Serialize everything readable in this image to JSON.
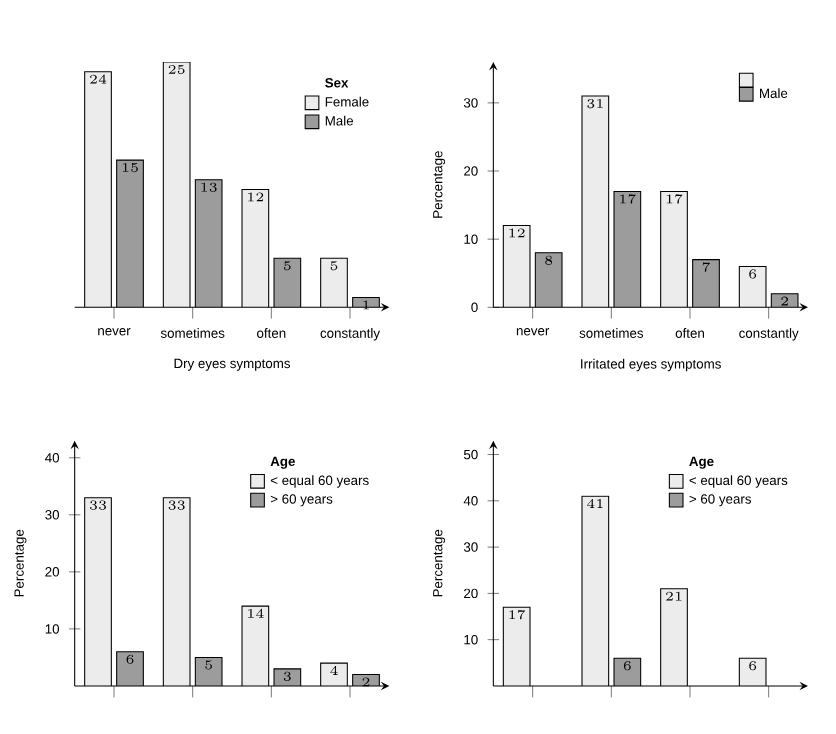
{
  "chart_data": [
    {
      "type": "bar",
      "xlabel": "Dry eyes symptoms",
      "legend_title": "Sex",
      "categories": [
        "never",
        "sometimes",
        "often",
        "constantly"
      ],
      "series": [
        {
          "name": "Female",
          "color": "#ececec",
          "values": [
            24,
            25,
            12,
            5
          ]
        },
        {
          "name": "Male",
          "color": "#9c9c9c",
          "values": [
            15,
            13,
            5,
            1
          ]
        }
      ],
      "data_labels": true,
      "legend": "top right",
      "tick_labels": "x"
    },
    {
      "type": "bar",
      "xlabel": "Irritated eyes symptoms",
      "ylabel": "Percentage",
      "categories": [
        "never",
        "sometimes",
        "often",
        "constantly"
      ],
      "series": [
        {
          "color": "#ececec",
          "values": [
            12,
            31,
            17,
            6
          ]
        },
        {
          "name": "Male",
          "color": "#9c9c9c",
          "values": [
            8,
            17,
            7,
            2
          ]
        }
      ],
      "ylim": [
        0,
        36
      ],
      "yticks": [
        0,
        10,
        20,
        30
      ],
      "data_labels": true,
      "legend": "top right"
    },
    {
      "type": "bar",
      "ylabel": "Percentage",
      "legend_title": "Age",
      "categories": [
        null,
        null,
        null,
        null
      ],
      "series": [
        {
          "name": "< equal 60 years",
          "color": "#ececec",
          "values": [
            33,
            33,
            14,
            4
          ]
        },
        {
          "name": "> 60 years",
          "color": "#9c9c9c",
          "values": [
            6,
            5,
            3,
            2
          ]
        }
      ],
      "ylim": [
        0,
        43
      ],
      "yticks": [
        10,
        20,
        30,
        40
      ],
      "data_labels": true,
      "legend": "top right",
      "tick_labels": "y"
    },
    {
      "type": "bar",
      "ylabel": "Percentage",
      "legend_title": "Age",
      "categories": [
        null,
        null,
        null,
        null
      ],
      "series": [
        {
          "name": "< equal 60 years",
          "color": "#ececec",
          "values": [
            17,
            41,
            21,
            6
          ]
        },
        {
          "name": "> 60 years",
          "color": "#9c9c9c",
          "values": [
            null,
            6,
            null,
            null
          ]
        }
      ],
      "ylim": [
        0,
        53
      ],
      "yticks": [
        10,
        20,
        30,
        40,
        50
      ],
      "data_labels": true,
      "legend": "top right",
      "tick_labels": "y"
    }
  ]
}
